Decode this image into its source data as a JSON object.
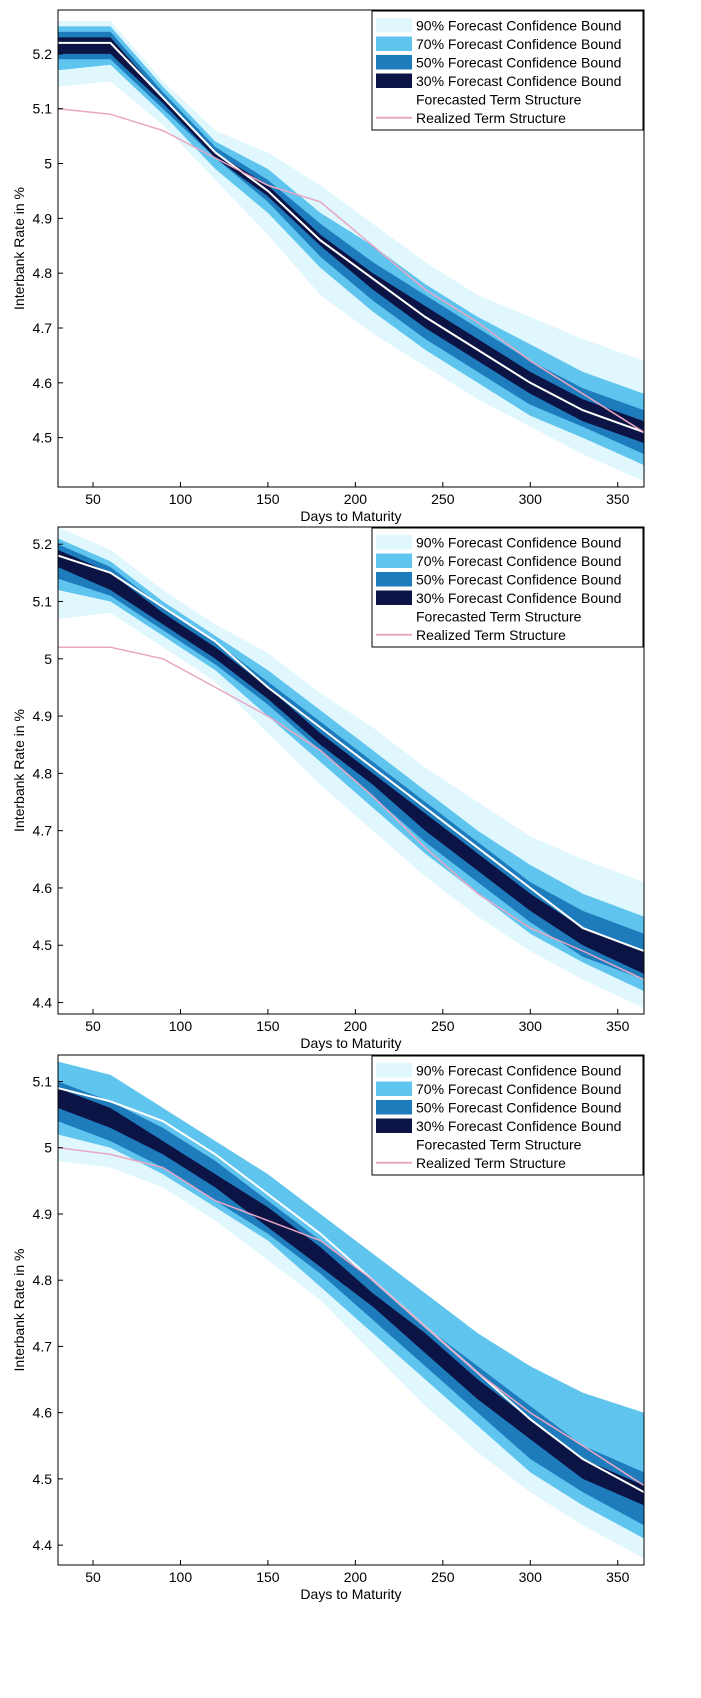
{
  "colors": {
    "band90": "#dff7fd",
    "band70": "#5fc4ee",
    "band50": "#1e7cbd",
    "band30": "#0c1445",
    "forecast": "#ffffff",
    "realized": "#e8a7c3",
    "axis": "#000000"
  },
  "chart_data": [
    {
      "type": "area",
      "xlabel": "Days to Maturity",
      "ylabel": "Interbank Rate in %",
      "xlim": [
        30,
        365
      ],
      "ylim": [
        4.41,
        5.28
      ],
      "xticks": [
        50,
        100,
        150,
        200,
        250,
        300,
        350
      ],
      "yticks": [
        4.5,
        4.6,
        4.7,
        4.8,
        4.9,
        5,
        5.1,
        5.2
      ],
      "legend_position": "top-right",
      "x": [
        30,
        60,
        90,
        120,
        150,
        180,
        210,
        240,
        270,
        300,
        330,
        365
      ],
      "series": [
        {
          "name": "90% Forecast Confidence Bound",
          "kind": "band",
          "lower": [
            5.14,
            5.15,
            5.07,
            4.97,
            4.87,
            4.76,
            4.69,
            4.63,
            4.57,
            4.52,
            4.47,
            4.42
          ],
          "upper": [
            5.26,
            5.26,
            5.15,
            5.06,
            5.02,
            4.96,
            4.89,
            4.82,
            4.76,
            4.72,
            4.68,
            4.64
          ]
        },
        {
          "name": "70% Forecast Confidence Bound",
          "kind": "band",
          "lower": [
            5.17,
            5.18,
            5.09,
            4.99,
            4.91,
            4.81,
            4.73,
            4.66,
            4.6,
            4.54,
            4.5,
            4.45
          ],
          "upper": [
            5.25,
            5.25,
            5.14,
            5.04,
            4.99,
            4.91,
            4.85,
            4.78,
            4.72,
            4.67,
            4.62,
            4.58
          ]
        },
        {
          "name": "50% Forecast Confidence Bound",
          "kind": "band",
          "lower": [
            5.19,
            5.19,
            5.1,
            5.01,
            4.93,
            4.83,
            4.75,
            4.68,
            4.62,
            4.56,
            4.52,
            4.47
          ],
          "upper": [
            5.24,
            5.24,
            5.13,
            5.03,
            4.97,
            4.89,
            4.82,
            4.76,
            4.7,
            4.64,
            4.59,
            4.55
          ]
        },
        {
          "name": "30% Forecast Confidence Bound",
          "kind": "band",
          "lower": [
            5.2,
            5.2,
            5.11,
            5.01,
            4.94,
            4.85,
            4.77,
            4.7,
            4.64,
            4.58,
            4.53,
            4.49
          ],
          "upper": [
            5.23,
            5.23,
            5.12,
            5.02,
            4.96,
            4.87,
            4.8,
            4.74,
            4.68,
            4.62,
            4.57,
            4.53
          ]
        },
        {
          "name": "Forecasted Term Structure",
          "kind": "line",
          "color_key": "forecast",
          "values": [
            5.22,
            5.22,
            5.12,
            5.02,
            4.95,
            4.86,
            4.79,
            4.72,
            4.66,
            4.6,
            4.55,
            4.51
          ]
        },
        {
          "name": "Realized Term Structure",
          "kind": "line",
          "color_key": "realized",
          "values": [
            5.1,
            5.09,
            5.06,
            5.01,
            4.96,
            4.93,
            4.85,
            4.77,
            4.71,
            4.64,
            4.58,
            4.51
          ]
        }
      ]
    },
    {
      "type": "area",
      "xlabel": "Days to Maturity",
      "ylabel": "Interbank Rate in %",
      "xlim": [
        30,
        365
      ],
      "ylim": [
        4.38,
        5.23
      ],
      "xticks": [
        50,
        100,
        150,
        200,
        250,
        300,
        350
      ],
      "yticks": [
        4.4,
        4.5,
        4.6,
        4.7,
        4.8,
        4.9,
        5,
        5.1,
        5.2
      ],
      "legend_position": "top-right",
      "x": [
        30,
        60,
        90,
        120,
        150,
        180,
        210,
        240,
        270,
        300,
        330,
        365
      ],
      "series": [
        {
          "name": "90% Forecast Confidence Bound",
          "kind": "band",
          "lower": [
            5.07,
            5.08,
            5.02,
            4.96,
            4.87,
            4.78,
            4.7,
            4.62,
            4.55,
            4.49,
            4.44,
            4.39
          ],
          "upper": [
            5.23,
            5.19,
            5.12,
            5.06,
            5.01,
            4.94,
            4.88,
            4.81,
            4.75,
            4.69,
            4.65,
            4.61
          ]
        },
        {
          "name": "70% Forecast Confidence Bound",
          "kind": "band",
          "lower": [
            5.12,
            5.1,
            5.04,
            4.98,
            4.9,
            4.82,
            4.74,
            4.66,
            4.59,
            4.52,
            4.47,
            4.42
          ],
          "upper": [
            5.21,
            5.17,
            5.1,
            5.04,
            4.98,
            4.91,
            4.84,
            4.77,
            4.7,
            4.64,
            4.59,
            4.55
          ]
        },
        {
          "name": "50% Forecast Confidence Bound",
          "kind": "band",
          "lower": [
            5.14,
            5.11,
            5.05,
            4.99,
            4.92,
            4.84,
            4.76,
            4.68,
            4.61,
            4.54,
            4.48,
            4.44
          ],
          "upper": [
            5.2,
            5.16,
            5.09,
            5.03,
            4.96,
            4.89,
            4.82,
            4.75,
            4.68,
            4.61,
            4.56,
            4.52
          ]
        },
        {
          "name": "30% Forecast Confidence Bound",
          "kind": "band",
          "lower": [
            5.16,
            5.12,
            5.06,
            5.0,
            4.93,
            4.85,
            4.78,
            4.7,
            4.63,
            4.56,
            4.5,
            4.45
          ],
          "upper": [
            5.19,
            5.15,
            5.08,
            5.02,
            4.95,
            4.87,
            4.8,
            4.73,
            4.66,
            4.59,
            4.53,
            4.49
          ]
        },
        {
          "name": "Forecasted Term Structure",
          "kind": "line",
          "color_key": "forecast",
          "values": [
            5.18,
            5.15,
            5.09,
            5.03,
            4.95,
            4.88,
            4.81,
            4.74,
            4.67,
            4.6,
            4.53,
            4.49
          ]
        },
        {
          "name": "Realized Term Structure",
          "kind": "line",
          "color_key": "realized",
          "values": [
            5.02,
            5.02,
            5.0,
            4.95,
            4.9,
            4.84,
            4.76,
            4.67,
            4.59,
            4.53,
            4.49,
            4.44
          ]
        }
      ]
    },
    {
      "type": "area",
      "xlabel": "Days to Maturity",
      "ylabel": "Interbank Rate in %",
      "xlim": [
        30,
        365
      ],
      "ylim": [
        4.37,
        5.14
      ],
      "xticks": [
        50,
        100,
        150,
        200,
        250,
        300,
        350
      ],
      "yticks": [
        4.4,
        4.5,
        4.6,
        4.7,
        4.8,
        4.9,
        5,
        5.1
      ],
      "legend_position": "top-right",
      "x": [
        30,
        60,
        90,
        120,
        150,
        180,
        210,
        240,
        270,
        300,
        330,
        365
      ],
      "series": [
        {
          "name": "90% Forecast Confidence Bound",
          "kind": "band",
          "lower": [
            4.98,
            4.97,
            4.94,
            4.89,
            4.83,
            4.77,
            4.69,
            4.61,
            4.54,
            4.48,
            4.43,
            4.38
          ],
          "upper": [
            5.13,
            5.11,
            5.06,
            5.01,
            4.96,
            4.9,
            4.84,
            4.78,
            4.72,
            4.67,
            4.63,
            4.6
          ]
        },
        {
          "name": "70% Forecast Confidence Bound",
          "kind": "band",
          "lower": [
            5.02,
            5.0,
            4.96,
            4.91,
            4.86,
            4.79,
            4.72,
            4.65,
            4.58,
            4.51,
            4.46,
            4.41
          ]
        },
        {
          "name": "50% Forecast Confidence Bound",
          "kind": "band",
          "lower": [
            5.04,
            5.01,
            4.97,
            4.92,
            4.87,
            4.81,
            4.74,
            4.67,
            4.6,
            4.53,
            4.48,
            4.43
          ],
          "upper": [
            5.1,
            5.07,
            5.03,
            4.98,
            4.92,
            4.86,
            4.8,
            4.73,
            4.67,
            4.61,
            4.55,
            4.51
          ]
        },
        {
          "name": "30% Forecast Confidence Bound",
          "kind": "band",
          "lower": [
            5.06,
            5.03,
            4.99,
            4.94,
            4.88,
            4.82,
            4.76,
            4.69,
            4.62,
            4.56,
            4.5,
            4.46
          ],
          "upper": [
            5.09,
            5.06,
            5.01,
            4.96,
            4.91,
            4.85,
            4.78,
            4.72,
            4.65,
            4.59,
            4.53,
            4.49
          ]
        },
        {
          "name": "Forecasted Term Structure",
          "kind": "line",
          "color_key": "forecast",
          "values": [
            5.09,
            5.07,
            5.04,
            4.99,
            4.93,
            4.87,
            4.8,
            4.73,
            4.66,
            4.59,
            4.53,
            4.48
          ]
        },
        {
          "name": "Realized Term Structure",
          "kind": "line",
          "color_key": "realized",
          "values": [
            5.0,
            4.99,
            4.97,
            4.92,
            4.89,
            4.86,
            4.8,
            4.73,
            4.66,
            4.6,
            4.55,
            4.49
          ]
        }
      ]
    }
  ]
}
